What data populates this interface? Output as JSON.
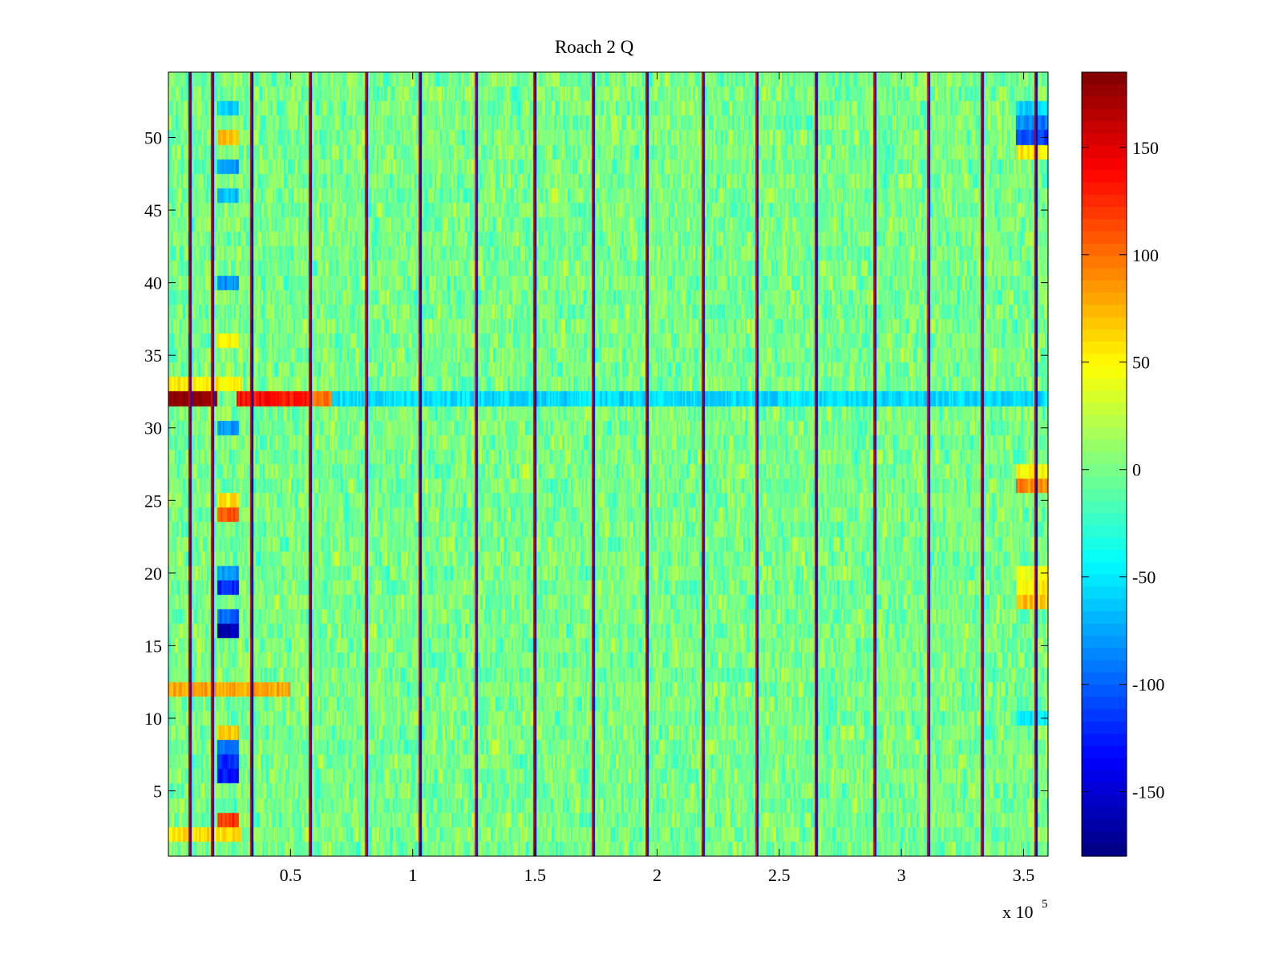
{
  "chart_data": {
    "type": "heatmap",
    "title": "Roach 2 Q",
    "xlabel": "",
    "ylabel": "",
    "x_multiplier_label": "x 10",
    "x_multiplier_exponent": "5",
    "xlim": [
      0,
      360000
    ],
    "ylim": [
      0.5,
      54.5
    ],
    "x_ticks": [
      50000,
      100000,
      150000,
      200000,
      250000,
      300000,
      350000
    ],
    "x_tick_labels": [
      "0.5",
      "1",
      "1.5",
      "2",
      "2.5",
      "3",
      "3.5"
    ],
    "y_ticks": [
      5,
      10,
      15,
      20,
      25,
      30,
      35,
      40,
      45,
      50
    ],
    "y_tick_labels": [
      "5",
      "10",
      "15",
      "20",
      "25",
      "30",
      "35",
      "40",
      "45",
      "50"
    ],
    "colormap": "jet",
    "clim": [
      -180,
      185
    ],
    "colorbar": {
      "ticks": [
        -150,
        -100,
        -50,
        0,
        50,
        100,
        150
      ],
      "tick_labels": [
        "-150",
        "-100",
        "-50",
        "0",
        "50",
        "100",
        "150"
      ]
    },
    "rows": 54,
    "background_level": 0,
    "noise_amplitude": 30,
    "vertical_stripes": [
      {
        "x": 9000,
        "high": 170,
        "low": -150
      },
      {
        "x": 18000,
        "high": 160,
        "low": -160
      },
      {
        "x": 34000,
        "high": 170,
        "low": -170
      },
      {
        "x": 58000,
        "high": 160,
        "low": -160
      },
      {
        "x": 81000,
        "high": 150,
        "low": -150
      },
      {
        "x": 103000,
        "high": 165,
        "low": -165
      },
      {
        "x": 126000,
        "high": 150,
        "low": -150
      },
      {
        "x": 150000,
        "high": 165,
        "low": -160
      },
      {
        "x": 174000,
        "high": 160,
        "low": -150
      },
      {
        "x": 196000,
        "high": 165,
        "low": -165
      },
      {
        "x": 219000,
        "high": 160,
        "low": -160
      },
      {
        "x": 241000,
        "high": 150,
        "low": -150
      },
      {
        "x": 265000,
        "high": 170,
        "low": -160
      },
      {
        "x": 289000,
        "high": 160,
        "low": -150
      },
      {
        "x": 311000,
        "high": 150,
        "low": -150
      },
      {
        "x": 333000,
        "high": 160,
        "low": -150
      },
      {
        "x": 355000,
        "high": 170,
        "low": -170
      }
    ],
    "patches": [
      {
        "x0": 0,
        "x1": 20000,
        "y": 32,
        "value": 185
      },
      {
        "x0": 28000,
        "x1": 58000,
        "y": 32,
        "value": 135
      },
      {
        "x0": 58000,
        "x1": 67000,
        "y": 32,
        "value": 100
      },
      {
        "x0": 67000,
        "x1": 360000,
        "y": 32,
        "value": -55
      },
      {
        "x0": 0,
        "x1": 30000,
        "y": 33,
        "value": 55
      },
      {
        "x0": 0,
        "x1": 50000,
        "y": 12,
        "value": 80
      },
      {
        "x0": 0,
        "x1": 30000,
        "y": 2,
        "value": 60
      },
      {
        "x0": 20000,
        "x1": 29000,
        "y": 3,
        "value": 120
      },
      {
        "x0": 20000,
        "x1": 29000,
        "y": 6,
        "value": -130
      },
      {
        "x0": 20000,
        "x1": 29000,
        "y": 7,
        "value": -120
      },
      {
        "x0": 20000,
        "x1": 29000,
        "y": 8,
        "value": -90
      },
      {
        "x0": 20000,
        "x1": 29000,
        "y": 9,
        "value": 70
      },
      {
        "x0": 20000,
        "x1": 29000,
        "y": 16,
        "value": -160
      },
      {
        "x0": 20000,
        "x1": 29000,
        "y": 17,
        "value": -100
      },
      {
        "x0": 20000,
        "x1": 29000,
        "y": 19,
        "value": -120
      },
      {
        "x0": 20000,
        "x1": 29000,
        "y": 20,
        "value": -80
      },
      {
        "x0": 20000,
        "x1": 29000,
        "y": 24,
        "value": 110
      },
      {
        "x0": 20000,
        "x1": 29000,
        "y": 25,
        "value": 60
      },
      {
        "x0": 20000,
        "x1": 29000,
        "y": 30,
        "value": -80
      },
      {
        "x0": 20000,
        "x1": 29000,
        "y": 36,
        "value": 50
      },
      {
        "x0": 20000,
        "x1": 29000,
        "y": 40,
        "value": -80
      },
      {
        "x0": 20000,
        "x1": 29000,
        "y": 46,
        "value": -70
      },
      {
        "x0": 20000,
        "x1": 29000,
        "y": 48,
        "value": -80
      },
      {
        "x0": 20000,
        "x1": 29000,
        "y": 50,
        "value": 70
      },
      {
        "x0": 20000,
        "x1": 29000,
        "y": 52,
        "value": -60
      },
      {
        "x0": 347000,
        "x1": 360000,
        "y": 50,
        "value": -110
      },
      {
        "x0": 347000,
        "x1": 360000,
        "y": 51,
        "value": -90
      },
      {
        "x0": 347000,
        "x1": 360000,
        "y": 52,
        "value": -60
      },
      {
        "x0": 347000,
        "x1": 360000,
        "y": 49,
        "value": 55
      },
      {
        "x0": 347000,
        "x1": 360000,
        "y": 26,
        "value": 90
      },
      {
        "x0": 347000,
        "x1": 360000,
        "y": 27,
        "value": 50
      },
      {
        "x0": 347000,
        "x1": 360000,
        "y": 18,
        "value": 70
      },
      {
        "x0": 347000,
        "x1": 360000,
        "y": 19,
        "value": 50
      },
      {
        "x0": 347000,
        "x1": 360000,
        "y": 20,
        "value": 45
      },
      {
        "x0": 347000,
        "x1": 360000,
        "y": 10,
        "value": -50
      }
    ]
  }
}
